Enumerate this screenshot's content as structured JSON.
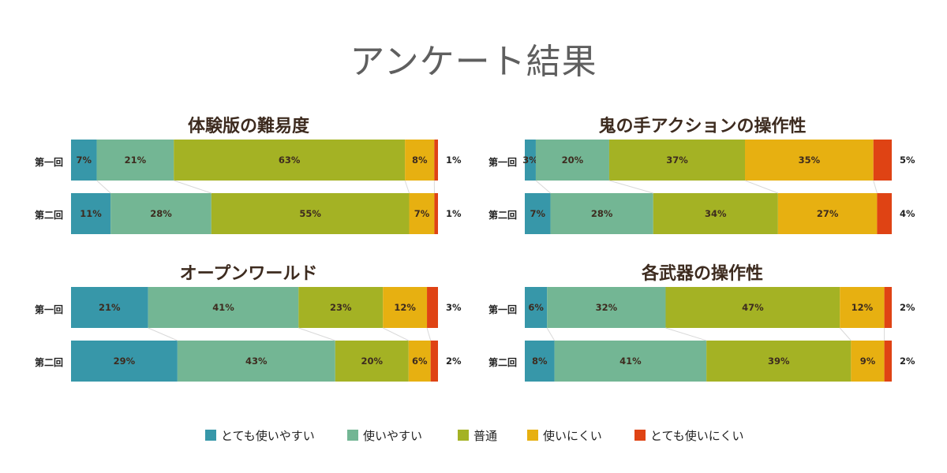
{
  "title": "アンケート結果",
  "legend": [
    "とても使いやすい",
    "使いやすい",
    "普通",
    "使いにくい",
    "とても使いにくい"
  ],
  "colors": [
    "#3797a9",
    "#73b694",
    "#a4b224",
    "#e7b011",
    "#df4314"
  ],
  "chart_data": [
    {
      "type": "bar",
      "stacked": true,
      "orientation": "horizontal",
      "title": "体験版の難易度",
      "categories": [
        "第一回",
        "第二回"
      ],
      "series": [
        {
          "name": "とても使いやすい",
          "values": [
            7,
            11
          ]
        },
        {
          "name": "使いやすい",
          "values": [
            21,
            28
          ]
        },
        {
          "name": "普通",
          "values": [
            63,
            55
          ]
        },
        {
          "name": "使いにくい",
          "values": [
            8,
            7
          ]
        },
        {
          "name": "とても使いにくい",
          "values": [
            1,
            1
          ]
        }
      ],
      "unit": "%"
    },
    {
      "type": "bar",
      "stacked": true,
      "orientation": "horizontal",
      "title": "鬼の手アクションの操作性",
      "categories": [
        "第一回",
        "第二回"
      ],
      "series": [
        {
          "name": "とても使いやすい",
          "values": [
            3,
            7
          ]
        },
        {
          "name": "使いやすい",
          "values": [
            20,
            28
          ]
        },
        {
          "name": "普通",
          "values": [
            37,
            34
          ]
        },
        {
          "name": "使いにくい",
          "values": [
            35,
            27
          ]
        },
        {
          "name": "とても使いにくい",
          "values": [
            5,
            4
          ]
        }
      ],
      "unit": "%"
    },
    {
      "type": "bar",
      "stacked": true,
      "orientation": "horizontal",
      "title": "オープンワールド",
      "categories": [
        "第一回",
        "第二回"
      ],
      "series": [
        {
          "name": "とても使いやすい",
          "values": [
            21,
            29
          ]
        },
        {
          "name": "使いやすい",
          "values": [
            41,
            43
          ]
        },
        {
          "name": "普通",
          "values": [
            23,
            20
          ]
        },
        {
          "name": "使いにくい",
          "values": [
            12,
            6
          ]
        },
        {
          "name": "とても使いにくい",
          "values": [
            3,
            2
          ]
        }
      ],
      "unit": "%"
    },
    {
      "type": "bar",
      "stacked": true,
      "orientation": "horizontal",
      "title": "各武器の操作性",
      "categories": [
        "第一回",
        "第二回"
      ],
      "series": [
        {
          "name": "とても使いやすい",
          "values": [
            6,
            8
          ]
        },
        {
          "name": "使いやすい",
          "values": [
            32,
            41
          ]
        },
        {
          "name": "普通",
          "values": [
            47,
            39
          ]
        },
        {
          "name": "使いにくい",
          "values": [
            12,
            9
          ]
        },
        {
          "name": "とても使いにくい",
          "values": [
            2,
            2
          ]
        }
      ],
      "unit": "%"
    }
  ]
}
